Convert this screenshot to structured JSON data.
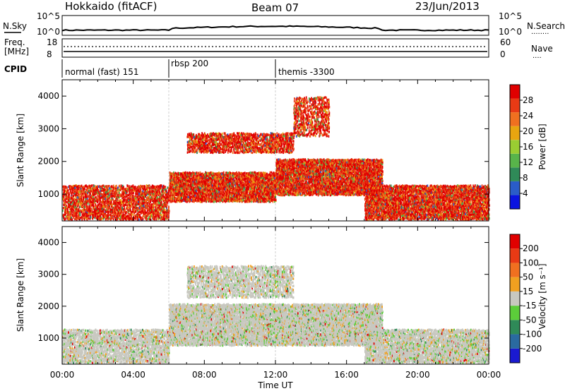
{
  "header": {
    "station": "Hokkaido (fitACF)",
    "beam": "Beam 07",
    "date": "23/Jun/2013"
  },
  "top_panels": {
    "nsky": {
      "label": "N.Sky",
      "left_ticks": [
        "10^5",
        "10^0"
      ],
      "right_ticks": [
        "10^5",
        "10^0"
      ],
      "right_label": "N.Search",
      "right_legend": "........"
    },
    "freq": {
      "label_line1": "Freq.",
      "label_line2": "[MHz]",
      "left_ticks": [
        "18",
        "8"
      ],
      "right_ticks": [
        "60",
        "0"
      ],
      "right_label": "Nave",
      "right_legend": "...."
    },
    "cpid": {
      "label": "CPID",
      "segments": [
        {
          "label": "normal (fast) 151",
          "start_hour": 0
        },
        {
          "label": "rbsp 200",
          "start_hour": 6
        },
        {
          "label": "themis -3300",
          "start_hour": 12
        }
      ]
    }
  },
  "x_axis": {
    "label": "Time UT",
    "tick_labels": [
      "00:00",
      "04:00",
      "08:00",
      "12:00",
      "16:00",
      "20:00",
      "00:00"
    ],
    "range_hours": [
      0,
      24
    ]
  },
  "chart_data": [
    {
      "type": "heatmap",
      "name": "Power",
      "ylabel": "Slant Range [km]",
      "ylim": [
        180,
        4500
      ],
      "xlim": [
        0,
        24
      ],
      "y_ticks": [
        "1000",
        "2000",
        "3000",
        "4000"
      ],
      "colorbar": {
        "label": "Power [dB]",
        "tick_labels": [
          "4",
          "8",
          "12",
          "16",
          "20",
          "24",
          "28"
        ],
        "range": [
          0,
          32
        ],
        "colors": [
          "#0a14e0",
          "#2a5cc8",
          "#2f8a58",
          "#58b44a",
          "#9acd32",
          "#e8a510",
          "#f07020",
          "#e83a15",
          "#e00000"
        ]
      },
      "scatter_bands": [
        {
          "from_hour": 0,
          "to_hour": 6,
          "range_min": 250,
          "range_max": 1300,
          "level": 0.7
        },
        {
          "from_hour": 6,
          "to_hour": 12,
          "range_min": 800,
          "range_max": 1700,
          "level": 0.9
        },
        {
          "from_hour": 7,
          "to_hour": 13,
          "range_min": 2300,
          "range_max": 2900,
          "level": 0.7
        },
        {
          "from_hour": 12,
          "to_hour": 18,
          "range_min": 1000,
          "range_max": 2100,
          "level": 0.9
        },
        {
          "from_hour": 13,
          "to_hour": 15,
          "range_min": 2800,
          "range_max": 4000,
          "level": 0.5
        },
        {
          "from_hour": 17,
          "to_hour": 24,
          "range_min": 250,
          "range_max": 1300,
          "level": 0.85
        }
      ]
    },
    {
      "type": "heatmap",
      "name": "Velocity",
      "ylabel": "Slant Range [km]",
      "ylim": [
        180,
        4500
      ],
      "xlim": [
        0,
        24
      ],
      "y_ticks": [
        "1000",
        "2000",
        "3000",
        "4000"
      ],
      "colorbar": {
        "label": "Velocity [m s⁻¹]",
        "tick_labels": [
          "200",
          "100",
          "50",
          "15",
          "-15",
          "-50",
          "-100",
          "-200"
        ],
        "colors": [
          "#1a1ad0",
          "#2a6aa0",
          "#2f8a58",
          "#5ccd3a",
          "#c8c8c0",
          "#f0a020",
          "#f07020",
          "#e83a15",
          "#e00000"
        ]
      },
      "scatter_bands": [
        {
          "from_hour": 0,
          "to_hour": 6,
          "range_min": 250,
          "range_max": 1300,
          "level": 0.7
        },
        {
          "from_hour": 6,
          "to_hour": 12,
          "range_min": 800,
          "range_max": 2100,
          "level": 0.9
        },
        {
          "from_hour": 7,
          "to_hour": 13,
          "range_min": 2300,
          "range_max": 3300,
          "level": 0.6
        },
        {
          "from_hour": 12,
          "to_hour": 18,
          "range_min": 800,
          "range_max": 2100,
          "level": 0.9
        },
        {
          "from_hour": 17,
          "to_hour": 24,
          "range_min": 250,
          "range_max": 1300,
          "level": 0.8
        }
      ]
    }
  ]
}
